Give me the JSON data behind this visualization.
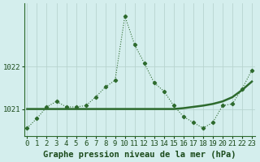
{
  "title": "Graphe pression niveau de la mer (hPa)",
  "x_values": [
    0,
    1,
    2,
    3,
    4,
    5,
    6,
    7,
    8,
    9,
    10,
    11,
    12,
    13,
    14,
    15,
    16,
    17,
    18,
    19,
    20,
    21,
    22,
    23
  ],
  "y_dotted": [
    1020.55,
    1020.78,
    1021.05,
    1021.18,
    1021.05,
    1021.05,
    1021.08,
    1021.28,
    1021.52,
    1021.68,
    1023.2,
    1022.52,
    1022.08,
    1021.62,
    1021.42,
    1021.08,
    1020.82,
    1020.68,
    1020.55,
    1020.68,
    1021.08,
    1021.12,
    1021.48,
    1021.92
  ],
  "y_solid": [
    1021.0,
    1021.0,
    1021.0,
    1021.0,
    1021.0,
    1021.0,
    1021.0,
    1021.0,
    1021.0,
    1021.0,
    1021.0,
    1021.0,
    1021.0,
    1021.0,
    1021.0,
    1021.0,
    1021.02,
    1021.05,
    1021.08,
    1021.12,
    1021.18,
    1021.28,
    1021.45,
    1021.65
  ],
  "ylim": [
    1020.35,
    1023.5
  ],
  "yticks": [
    1021,
    1022
  ],
  "xlim": [
    -0.3,
    23.3
  ],
  "line_color": "#2d6a2d",
  "bg_color": "#d4eeed",
  "grid_color": "#b8d4d0",
  "text_color": "#1a4a1a",
  "title_fontsize": 7.5,
  "tick_fontsize": 6.5
}
